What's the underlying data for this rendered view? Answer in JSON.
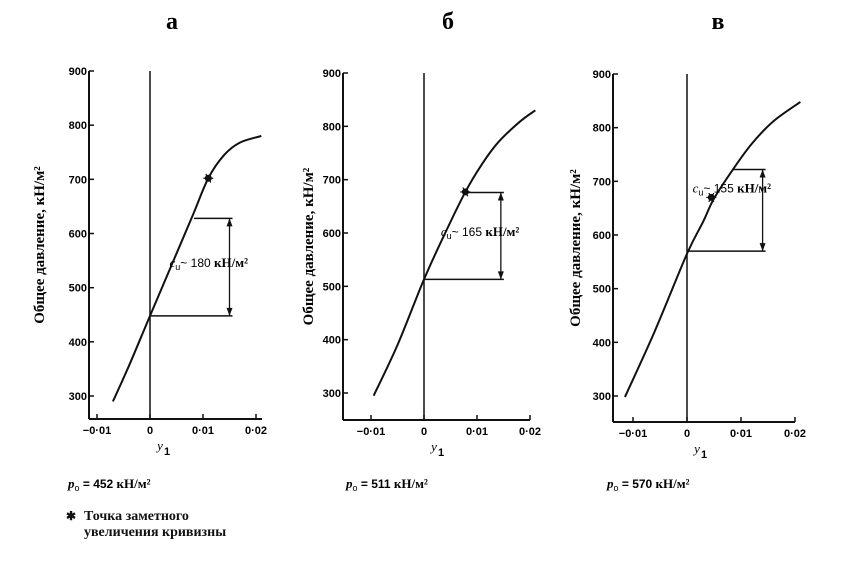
{
  "chart_data": [
    {
      "type": "line",
      "panel_label": "а",
      "xlabel": "y",
      "xlabel_subscript": "1",
      "ylabel": "Общее давление, кН/м²",
      "xlim": [
        -0.015,
        0.02
      ],
      "ylim": [
        250,
        900
      ],
      "xticks": [
        -0.01,
        0,
        0.01,
        0.02
      ],
      "xtick_labels": [
        "−0·01",
        "0",
        "0·01",
        "0·02"
      ],
      "yticks": [
        300,
        400,
        500,
        600,
        700,
        800,
        900
      ],
      "ytick_labels": [
        "300",
        "400",
        "500",
        "600",
        "700",
        "800",
        "900"
      ],
      "series": [
        {
          "name": "curve",
          "x": [
            -0.007,
            -0.004,
            0,
            0.004,
            0.008,
            0.011,
            0.014,
            0.017,
            0.021
          ],
          "y": [
            290,
            355,
            448,
            540,
            632,
            702,
            745,
            768,
            780
          ]
        }
      ],
      "marker_point": {
        "x": 0.011,
        "y": 702
      },
      "bracket": {
        "y_low": 448,
        "y_high": 628,
        "x_left_low": 0,
        "x_left_high": 0.0083,
        "x_right": 0.015
      },
      "annotation": {
        "symbol": "c",
        "subscript": "u",
        "approx": "~",
        "value": "180",
        "unit": "кН/м²"
      },
      "p0": {
        "label": "p",
        "subscript": "o",
        "eq": "=",
        "value": "452",
        "unit": "кН/м²"
      }
    },
    {
      "type": "line",
      "panel_label": "б",
      "xlabel": "y",
      "xlabel_subscript": "1",
      "ylabel": "Общее давление, кН/м²",
      "xlim": [
        -0.015,
        0.02
      ],
      "ylim": [
        250,
        900
      ],
      "xticks": [
        -0.01,
        0,
        0.01,
        0.02
      ],
      "xtick_labels": [
        "−0·01",
        "0",
        "0·01",
        "0·02"
      ],
      "yticks": [
        300,
        400,
        500,
        600,
        700,
        800,
        900
      ],
      "ytick_labels": [
        "300",
        "400",
        "500",
        "600",
        "700",
        "800",
        "900"
      ],
      "series": [
        {
          "name": "curve",
          "x": [
            -0.0095,
            -0.005,
            0,
            0.004,
            0.0078,
            0.011,
            0.014,
            0.018,
            0.021
          ],
          "y": [
            295,
            390,
            513,
            600,
            677,
            730,
            770,
            808,
            830
          ]
        }
      ],
      "marker_point": {
        "x": 0.0078,
        "y": 677
      },
      "bracket": {
        "y_low": 513,
        "y_high": 676,
        "x_left_low": 0,
        "x_left_high": 0.0078,
        "x_right": 0.0145
      },
      "annotation": {
        "symbol": "c",
        "subscript": "u",
        "approx": "~",
        "value": "165",
        "unit": "кН/м²"
      },
      "p0": {
        "label": "p",
        "subscript": "o",
        "eq": "=",
        "value": "511",
        "unit": "кН/м²"
      }
    },
    {
      "type": "line",
      "panel_label": "в",
      "xlabel": "y",
      "xlabel_subscript": "1",
      "ylabel": "Общее давление, кН/м²",
      "xlim": [
        -0.015,
        0.02
      ],
      "ylim": [
        250,
        900
      ],
      "xticks": [
        -0.01,
        0,
        0.01,
        0.02
      ],
      "xtick_labels": [
        "−0·01",
        "0",
        "0·01",
        "0·02"
      ],
      "yticks": [
        300,
        400,
        500,
        600,
        700,
        800,
        900
      ],
      "ytick_labels": [
        "300",
        "400",
        "500",
        "600",
        "700",
        "800",
        "900"
      ],
      "series": [
        {
          "name": "curve",
          "x": [
            -0.0115,
            -0.006,
            0,
            0.003,
            0.005,
            0.0085,
            0.012,
            0.016,
            0.021
          ],
          "y": [
            298,
            420,
            565,
            625,
            668,
            722,
            770,
            812,
            848
          ]
        }
      ],
      "marker_point": {
        "x": 0.0045,
        "y": 670
      },
      "bracket": {
        "y_low": 570,
        "y_high": 722,
        "x_left_low": 0,
        "x_left_high": 0.0085,
        "x_right": 0.014
      },
      "annotation": {
        "symbol": "c",
        "subscript": "u",
        "approx": "~",
        "value": "155",
        "unit": "кН/м²"
      },
      "p0": {
        "label": "p",
        "subscript": "o",
        "eq": "=",
        "value": "570",
        "unit": "кН/м²"
      }
    }
  ],
  "legend": {
    "symbol": "✱",
    "line1": "Точка заметного",
    "line2": "увеличения кривизны"
  }
}
